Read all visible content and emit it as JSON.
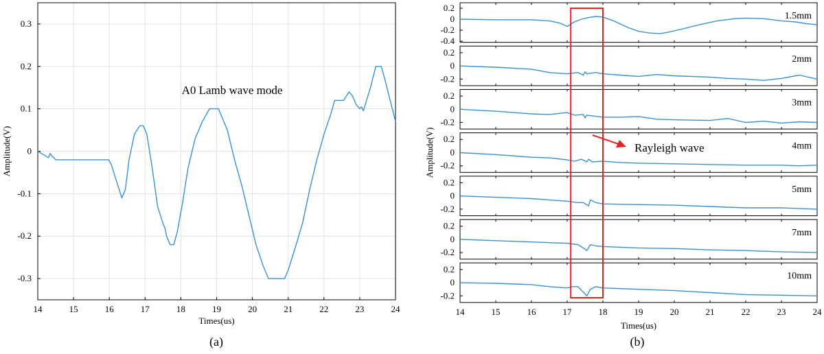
{
  "colors": {
    "line": "#3b8fd0",
    "grid": "#e3e3e3",
    "box": "#e52222",
    "arrow": "#e52222",
    "axis": "#000000"
  },
  "panel_labels": {
    "a": "(a)",
    "b": "(b)"
  },
  "chart_data": [
    {
      "type": "line",
      "panel": "(a)",
      "xlabel": "Times(us)",
      "ylabel": "Amplitude(V)",
      "xlim": [
        14,
        24
      ],
      "ylim": [
        -0.35,
        0.35
      ],
      "xticks": [
        14,
        15,
        16,
        17,
        18,
        19,
        20,
        21,
        22,
        23,
        24
      ],
      "xtick_labels": [
        "14",
        "15",
        "16",
        "17",
        "18",
        "19",
        "20",
        "21",
        "22",
        "23",
        "24"
      ],
      "yticks": [
        -0.3,
        -0.2,
        -0.1,
        0,
        0.1,
        0.2,
        0.3
      ],
      "ytick_labels": [
        "-0.3",
        "-0.2",
        "-0.1",
        "0",
        "0.1",
        "0.2",
        "0.3"
      ],
      "grid": true,
      "annotation": "A0 Lamb wave mode",
      "series": [
        {
          "x": [
            14.0,
            14.1,
            14.2,
            14.3,
            14.35,
            14.4,
            14.45,
            14.5,
            14.6,
            15.0,
            15.5,
            15.98,
            16.05,
            16.2,
            16.35,
            16.45,
            16.55,
            16.7,
            16.85,
            16.95,
            17.05,
            17.2,
            17.35,
            17.5,
            17.55,
            17.6,
            17.7,
            17.8,
            17.9,
            18.05,
            18.2,
            18.4,
            18.6,
            18.8,
            18.95,
            19.05,
            19.15,
            19.3,
            19.5,
            19.7,
            19.9,
            20.1,
            20.3,
            20.45,
            20.55,
            20.9,
            21.0,
            21.15,
            21.4,
            21.6,
            21.8,
            22.0,
            22.2,
            22.3,
            22.55,
            22.7,
            22.8,
            22.9,
            23.0,
            23.05,
            23.1,
            23.3,
            23.45,
            23.6,
            23.7,
            23.85,
            24.0
          ],
          "y": [
            0.0,
            -0.005,
            -0.01,
            -0.015,
            -0.005,
            -0.012,
            -0.015,
            -0.02,
            -0.02,
            -0.02,
            -0.02,
            -0.02,
            -0.03,
            -0.07,
            -0.11,
            -0.09,
            -0.02,
            0.04,
            0.06,
            0.06,
            0.04,
            -0.04,
            -0.13,
            -0.17,
            -0.18,
            -0.2,
            -0.22,
            -0.22,
            -0.19,
            -0.12,
            -0.04,
            0.03,
            0.07,
            0.1,
            0.1,
            0.1,
            0.08,
            0.05,
            -0.02,
            -0.08,
            -0.15,
            -0.22,
            -0.27,
            -0.3,
            -0.3,
            -0.3,
            -0.28,
            -0.24,
            -0.17,
            -0.09,
            -0.02,
            0.04,
            0.09,
            0.12,
            0.12,
            0.14,
            0.13,
            0.11,
            0.1,
            0.105,
            0.095,
            0.15,
            0.2,
            0.2,
            0.17,
            0.12,
            0.07
          ]
        }
      ]
    },
    {
      "type": "line",
      "panel": "(b)",
      "xlabel": "Times(us)",
      "ylabel": "Amplitude(V)",
      "xlim": [
        14,
        24
      ],
      "xticks": [
        14,
        15,
        16,
        17,
        18,
        19,
        20,
        21,
        22,
        23,
        24
      ],
      "xtick_labels": [
        "14",
        "15",
        "16",
        "17",
        "18",
        "19",
        "20",
        "21",
        "22",
        "23",
        "24"
      ],
      "highlight_x_range": [
        17.1,
        18.0
      ],
      "annotation": "Rayleigh wave",
      "series": [
        {
          "name": "1.5mm",
          "ylim": [
            -0.42,
            0.3
          ],
          "yticks": [
            0.2,
            0,
            -0.2,
            -0.4
          ],
          "ytick_labels": [
            "0.2",
            "0",
            "-0.2",
            "-0.4"
          ],
          "x": [
            14.0,
            15.0,
            16.0,
            16.5,
            16.8,
            17.0,
            17.2,
            17.4,
            17.6,
            17.8,
            18.0,
            18.3,
            18.7,
            19.0,
            19.3,
            19.6,
            19.8,
            20.2,
            20.7,
            21.2,
            21.7,
            22.0,
            22.5,
            23.0,
            23.4,
            23.7,
            24.0
          ],
          "y": [
            0.0,
            -0.01,
            -0.01,
            -0.03,
            -0.07,
            -0.13,
            -0.05,
            0.0,
            0.03,
            0.05,
            0.04,
            -0.03,
            -0.15,
            -0.22,
            -0.25,
            -0.26,
            -0.24,
            -0.18,
            -0.1,
            -0.03,
            0.01,
            0.02,
            0.01,
            -0.03,
            -0.05,
            -0.08,
            -0.1
          ]
        },
        {
          "name": "2mm",
          "ylim": [
            -0.3,
            0.3
          ],
          "yticks": [
            0.2,
            0,
            -0.2
          ],
          "ytick_labels": [
            "0.2",
            "0",
            "-0.2"
          ],
          "x": [
            14.0,
            15.0,
            16.0,
            16.5,
            17.0,
            17.3,
            17.45,
            17.5,
            17.55,
            17.8,
            18.0,
            18.5,
            19.0,
            19.5,
            20.0,
            21.0,
            21.5,
            22.0,
            22.5,
            23.0,
            23.5,
            24.0
          ],
          "y": [
            0.0,
            -0.02,
            -0.05,
            -0.1,
            -0.12,
            -0.1,
            -0.14,
            -0.09,
            -0.12,
            -0.1,
            -0.12,
            -0.14,
            -0.16,
            -0.13,
            -0.15,
            -0.17,
            -0.19,
            -0.2,
            -0.22,
            -0.19,
            -0.14,
            -0.2
          ]
        },
        {
          "name": "3mm",
          "ylim": [
            -0.3,
            0.3
          ],
          "yticks": [
            0.2,
            0,
            -0.2
          ],
          "ytick_labels": [
            "0.2",
            "0",
            "-0.2"
          ],
          "x": [
            14.0,
            15.0,
            16.0,
            16.5,
            17.0,
            17.2,
            17.45,
            17.5,
            17.55,
            18.0,
            18.5,
            19.0,
            19.5,
            20.0,
            21.0,
            21.5,
            22.0,
            22.5,
            23.0,
            23.5,
            24.0
          ],
          "y": [
            0.0,
            -0.03,
            -0.07,
            -0.08,
            -0.05,
            -0.09,
            -0.08,
            -0.13,
            -0.09,
            -0.12,
            -0.12,
            -0.11,
            -0.15,
            -0.16,
            -0.17,
            -0.14,
            -0.2,
            -0.18,
            -0.21,
            -0.19,
            -0.2
          ]
        },
        {
          "name": "4mm",
          "ylim": [
            -0.3,
            0.3
          ],
          "yticks": [
            0.2,
            0,
            -0.2
          ],
          "ytick_labels": [
            "0.2",
            "0",
            "-0.2"
          ],
          "x": [
            14.0,
            15.0,
            16.0,
            16.5,
            17.0,
            17.2,
            17.4,
            17.55,
            17.6,
            17.7,
            18.0,
            18.5,
            19.0,
            20.0,
            21.0,
            22.0,
            23.0,
            23.5,
            24.0
          ],
          "y": [
            0.0,
            -0.03,
            -0.07,
            -0.08,
            -0.11,
            -0.13,
            -0.1,
            -0.14,
            -0.1,
            -0.14,
            -0.13,
            -0.15,
            -0.16,
            -0.17,
            -0.18,
            -0.19,
            -0.19,
            -0.2,
            -0.19
          ]
        },
        {
          "name": "5mm",
          "ylim": [
            -0.3,
            0.3
          ],
          "yticks": [
            0.2,
            0,
            -0.2
          ],
          "ytick_labels": [
            "0.2",
            "0",
            "-0.2"
          ],
          "x": [
            14.0,
            15.0,
            16.0,
            16.5,
            17.0,
            17.3,
            17.45,
            17.6,
            17.65,
            17.8,
            18.0,
            19.0,
            20.0,
            21.0,
            22.0,
            23.0,
            24.0
          ],
          "y": [
            0.0,
            -0.02,
            -0.04,
            -0.06,
            -0.08,
            -0.1,
            -0.1,
            -0.15,
            -0.06,
            -0.1,
            -0.12,
            -0.13,
            -0.14,
            -0.16,
            -0.18,
            -0.18,
            -0.2
          ]
        },
        {
          "name": "7mm",
          "ylim": [
            -0.3,
            0.3
          ],
          "yticks": [
            0.2,
            0,
            -0.2
          ],
          "ytick_labels": [
            "0.2",
            "0",
            "-0.2"
          ],
          "x": [
            14.0,
            15.0,
            16.0,
            16.5,
            17.0,
            17.3,
            17.45,
            17.55,
            17.65,
            17.8,
            18.0,
            19.0,
            20.0,
            21.0,
            22.0,
            23.0,
            24.0
          ],
          "y": [
            0.0,
            -0.02,
            -0.04,
            -0.05,
            -0.06,
            -0.08,
            -0.13,
            -0.17,
            -0.08,
            -0.1,
            -0.11,
            -0.13,
            -0.14,
            -0.16,
            -0.17,
            -0.19,
            -0.2
          ]
        },
        {
          "name": "10mm",
          "ylim": [
            -0.3,
            0.3
          ],
          "yticks": [
            0.2,
            0,
            -0.2
          ],
          "ytick_labels": [
            "0.2",
            "0",
            "-0.2"
          ],
          "x": [
            14.0,
            15.0,
            16.0,
            16.5,
            17.0,
            17.15,
            17.3,
            17.5,
            17.55,
            17.65,
            17.8,
            18.0,
            19.0,
            20.0,
            21.0,
            22.0,
            23.0,
            24.0
          ],
          "y": [
            0.0,
            -0.01,
            -0.03,
            -0.06,
            -0.08,
            -0.06,
            -0.06,
            -0.17,
            -0.2,
            -0.1,
            -0.06,
            -0.08,
            -0.1,
            -0.12,
            -0.15,
            -0.18,
            -0.19,
            -0.2
          ]
        }
      ]
    }
  ]
}
